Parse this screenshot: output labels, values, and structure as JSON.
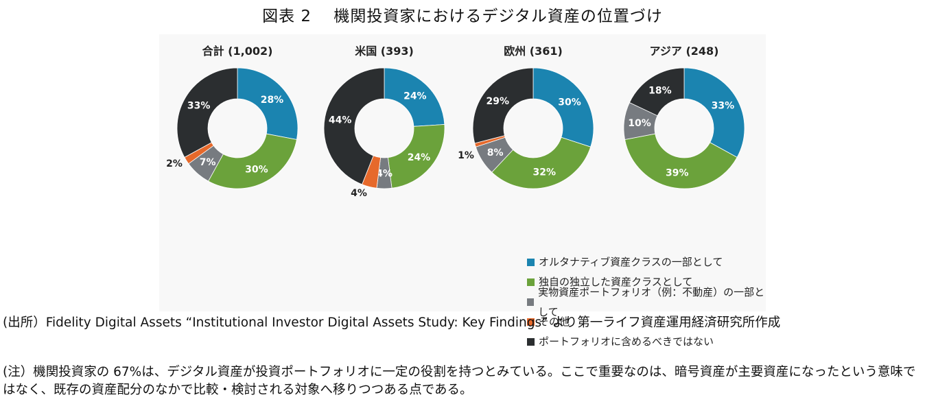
{
  "figure_title": "図表 2　 機関投資家におけるデジタル資産の位置づけ",
  "chart_data": {
    "type": "pie",
    "title": "図表 2　 機関投資家におけるデジタル資産の位置づけ",
    "categories": [
      "オルタナティブ資産クラスの一部として",
      "独自の独立した資産クラスとして",
      "実物資産ポートフォリオ（例：不動産）の一部として",
      "その他",
      "ポートフォリオに含めるべきではない"
    ],
    "colors": [
      "#1b84b0",
      "#6ba23b",
      "#777b80",
      "#e6692b",
      "#2b2e30"
    ],
    "series": [
      {
        "name": "合計 (1,002)",
        "values": [
          28,
          30,
          7,
          2,
          33
        ],
        "labels": [
          "28%",
          "30%",
          "7%",
          "2%",
          "33%"
        ]
      },
      {
        "name": "米国 (393)",
        "values": [
          24,
          24,
          4,
          4,
          44
        ],
        "labels": [
          "24%",
          "24%",
          "4%",
          "4%",
          "44%"
        ]
      },
      {
        "name": "欧州 (361)",
        "values": [
          30,
          32,
          8,
          1,
          29
        ],
        "labels": [
          "30%",
          "32%",
          "8%",
          "1%",
          "29%"
        ]
      },
      {
        "name": "アジア (248)",
        "values": [
          33,
          39,
          10,
          0,
          18
        ],
        "labels": [
          "33%",
          "39%",
          "10%",
          "",
          "18%"
        ]
      }
    ],
    "legend_position": "bottom-right"
  },
  "source_note": "(出所）Fidelity Digital Assets “Institutional Investor Digital Assets Study: Key Findings” より第一ライフ資産運用経済研究所作成",
  "note": "(注）機関投資家の 67%は、デジタル資産が投資ポートフォリオに一定の役割を持つとみている。ここで重要なのは、暗号資産が主要資産になったという意味ではなく、既存の資産配分のなかで比較・検討される対象へ移りつつある点である。"
}
